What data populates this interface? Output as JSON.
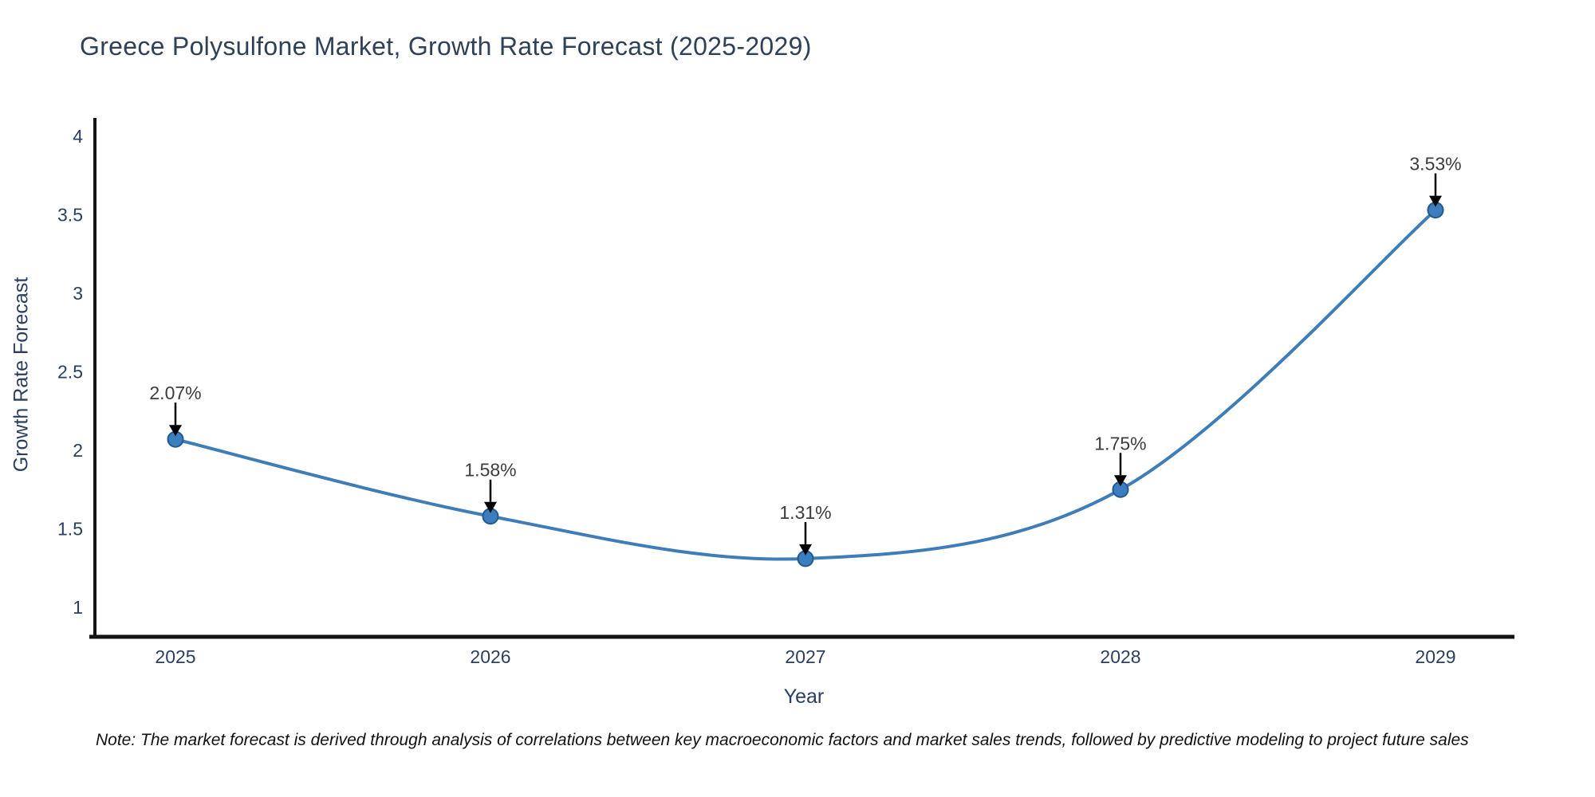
{
  "page": {
    "background": "#ffffff"
  },
  "note": "Note: The market forecast is derived through analysis of correlations between key macroeconomic factors and market sales trends, followed by predictive modeling to project future sales",
  "chart_data": {
    "type": "line",
    "title": "Greece Polysulfone Market, Growth Rate Forecast (2025-2029)",
    "xlabel": "Year",
    "ylabel": "Growth Rate Forecast",
    "categories": [
      "2025",
      "2026",
      "2027",
      "2028",
      "2029"
    ],
    "values": [
      2.07,
      1.58,
      1.31,
      1.75,
      3.53
    ],
    "point_labels": [
      "2.07%",
      "1.58%",
      "1.31%",
      "1.75%",
      "3.53%"
    ],
    "yticks": [
      1,
      1.5,
      2,
      2.5,
      3,
      3.5,
      4
    ],
    "ylim": [
      0.8,
      4.1
    ],
    "line_shape": "spline",
    "grid": false,
    "legend": "none",
    "annotation_style": "label-with-down-arrow",
    "colors": {
      "line": "#3e7db8",
      "marker_fill": "#3a7ebf",
      "marker_edge": "#26598c",
      "axis_text": "#2a3f5f",
      "annotation_text": "#3d3d3d",
      "arrow": "#000000",
      "spine": "#131313",
      "background": "#ffffff"
    }
  }
}
